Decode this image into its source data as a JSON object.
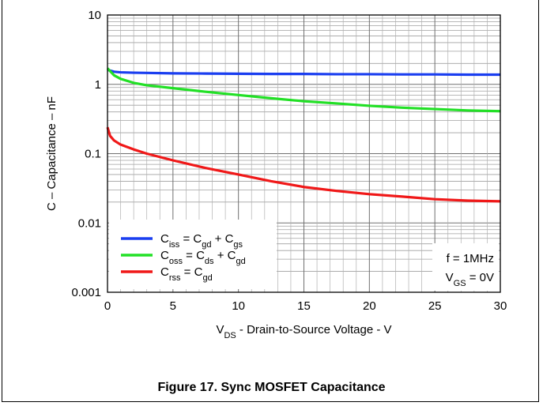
{
  "chart_data": {
    "type": "line",
    "x_scale": "linear",
    "y_scale": "log",
    "xlim": [
      0,
      30
    ],
    "ylim": [
      0.001,
      10
    ],
    "x_ticks": [
      "0",
      "5",
      "10",
      "15",
      "20",
      "25",
      "30"
    ],
    "y_ticks": [
      "0.001",
      "0.01",
      "0.1",
      "1",
      "10"
    ],
    "xlabel": {
      "main": "V",
      "sub": "DS",
      "rest": " - Drain-to-Source Voltage - V"
    },
    "ylabel": "C – Capacitance – nF",
    "grid": true,
    "legend_position": "bottom-left",
    "series": [
      {
        "legend": {
          "a": "C",
          "a_sub": "iss",
          "b": " = C",
          "b_sub": "gd",
          "c": " + C",
          "c_sub": "gs"
        },
        "color": "#1a3ef0",
        "x": [
          0,
          0.5,
          1,
          2,
          3,
          5,
          7.5,
          10,
          12.5,
          15,
          17.5,
          20,
          22.5,
          25,
          27.5,
          30
        ],
        "y": [
          1.62,
          1.52,
          1.49,
          1.47,
          1.46,
          1.44,
          1.43,
          1.42,
          1.41,
          1.41,
          1.4,
          1.4,
          1.39,
          1.39,
          1.38,
          1.38
        ]
      },
      {
        "legend": {
          "a": "C",
          "a_sub": "oss",
          "b": " = C",
          "b_sub": "ds",
          "c": " + C",
          "c_sub": "gd"
        },
        "color": "#22e026",
        "x": [
          0,
          0.5,
          1,
          2,
          3,
          5,
          7.5,
          10,
          12.5,
          15,
          17.5,
          20,
          22.5,
          25,
          27.5,
          30
        ],
        "y": [
          1.7,
          1.35,
          1.2,
          1.05,
          0.97,
          0.88,
          0.78,
          0.7,
          0.63,
          0.57,
          0.53,
          0.49,
          0.46,
          0.44,
          0.42,
          0.41
        ]
      },
      {
        "legend": {
          "a": "C",
          "a_sub": "rss",
          "b": " =  C",
          "b_sub": "gd",
          "c": "",
          "c_sub": ""
        },
        "color": "#f01818",
        "x": [
          0,
          0.2,
          0.5,
          1,
          2,
          3,
          5,
          7.5,
          10,
          12.5,
          15,
          17.5,
          20,
          22.5,
          25,
          27.5,
          30
        ],
        "y": [
          0.24,
          0.18,
          0.155,
          0.135,
          0.115,
          0.1,
          0.08,
          0.062,
          0.05,
          0.04,
          0.033,
          0.029,
          0.026,
          0.024,
          0.022,
          0.021,
          0.0205
        ]
      }
    ],
    "annotations": [
      {
        "text": "f = 1MHz"
      },
      {
        "main": "V",
        "sub": "GS",
        "rest": " = 0V"
      }
    ]
  },
  "caption": "Figure 17. Sync MOSFET Capacitance"
}
